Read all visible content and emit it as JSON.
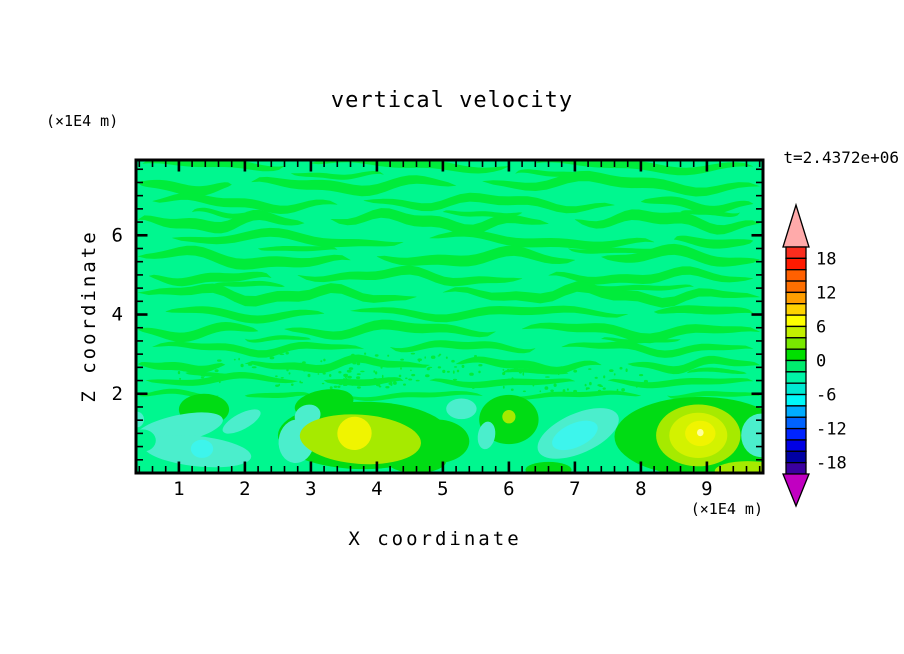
{
  "title": "vertical velocity",
  "time_label": "t=2.4372e+06",
  "axes": {
    "x_label": "X coordinate",
    "x_unit": "(×1E4 m)",
    "z_label": "Z coordinate",
    "z_unit": "(×1E4 m)",
    "x_ticks": [
      1,
      2,
      3,
      4,
      5,
      6,
      7,
      8,
      9
    ],
    "z_ticks": [
      2,
      4,
      6
    ]
  },
  "colorbar": {
    "labels": [
      "18",
      "12",
      "6",
      "0",
      "-6",
      "-12",
      "-18"
    ],
    "segments": [
      "#FA2D1E",
      "#FF1A00",
      "#FF6000",
      "#FF6F00",
      "#FF9E00",
      "#FFD300",
      "#FFFF00",
      "#C3F000",
      "#79E900",
      "#00DF00",
      "#00EC6E",
      "#00F4A6",
      "#00E9D2",
      "#00F8F8",
      "#00ACFF",
      "#0063FF",
      "#0024FF",
      "#0000E4",
      "#0000A4",
      "#3B00A0"
    ],
    "over_color": "#FFAAAA",
    "under_color": "#C100C1"
  },
  "chart_data": {
    "type": "filled_contour",
    "field": "vertical velocity",
    "time_label": "t=2.4372e+06",
    "x_range": [
      0.35,
      9.85
    ],
    "z_range": [
      0,
      7.9
    ],
    "x_axis_unit": "(×1E4 m)",
    "z_axis_unit": "(×1E4 m)",
    "contour_interval": 2,
    "level_range": [
      -20,
      20
    ],
    "levels_labeled": [
      18,
      12,
      6,
      0,
      -6,
      -12,
      -18
    ],
    "palette": {
      "bg": "#00F78F",
      "streak": "#00EC3B",
      "green": "#00DC14",
      "turquoise": "#4BEECC",
      "cyan": "#3DF5EC",
      "chartreuse": "#A6EA00",
      "yellowgreen": "#D3F200",
      "yellow": "#F0F400",
      "pale": "#FFFF9C"
    },
    "features": {
      "streak_bands_note": "alternating wavy bands of w between 0 and +2 (green) on 0 to -2 (spring green), z from 1.9 to 7.9",
      "streaks": [
        {
          "z": 7.78,
          "h": 0.2,
          "t": -0.025,
          "segs": [
            [
              0.45,
              2.6
            ],
            [
              3.0,
              6.0
            ],
            [
              6.4,
              9.7
            ]
          ]
        },
        {
          "z": 7.3,
          "h": 0.26,
          "t": -0.03,
          "segs": [
            [
              0.38,
              1.8
            ],
            [
              2.1,
              5.2
            ],
            [
              5.6,
              9.8
            ]
          ]
        },
        {
          "z": 6.82,
          "h": 0.22,
          "t": -0.03,
          "segs": [
            [
              0.6,
              3.4
            ],
            [
              3.8,
              7.6
            ],
            [
              8.0,
              9.7
            ]
          ]
        },
        {
          "z": 6.35,
          "h": 0.28,
          "t": -0.035,
          "segs": [
            [
              0.38,
              2.9
            ],
            [
              3.3,
              6.6
            ],
            [
              7.0,
              9.8
            ]
          ]
        },
        {
          "z": 5.88,
          "h": 0.22,
          "t": -0.03,
          "segs": [
            [
              0.9,
              4.4
            ],
            [
              4.8,
              8.2
            ],
            [
              8.5,
              9.7
            ]
          ]
        },
        {
          "z": 5.42,
          "h": 0.27,
          "t": -0.03,
          "segs": [
            [
              0.38,
              3.6
            ],
            [
              4.0,
              7.0
            ],
            [
              7.4,
              9.8
            ]
          ]
        },
        {
          "z": 4.95,
          "h": 0.22,
          "t": -0.025,
          "segs": [
            [
              0.55,
              2.4
            ],
            [
              2.8,
              6.2
            ],
            [
              6.6,
              9.7
            ]
          ]
        },
        {
          "z": 4.5,
          "h": 0.26,
          "t": -0.025,
          "segs": [
            [
              0.38,
              4.6
            ],
            [
              5.0,
              9.8
            ]
          ]
        },
        {
          "z": 4.05,
          "h": 0.2,
          "t": -0.02,
          "segs": [
            [
              0.8,
              3.2
            ],
            [
              3.6,
              7.8
            ],
            [
              8.2,
              9.7
            ]
          ]
        },
        {
          "z": 3.6,
          "h": 0.24,
          "t": -0.02,
          "segs": [
            [
              0.38,
              2.2
            ],
            [
              2.6,
              5.8
            ],
            [
              6.2,
              9.8
            ]
          ]
        },
        {
          "z": 3.16,
          "h": 0.18,
          "t": -0.015,
          "segs": [
            [
              0.6,
              3.8
            ],
            [
              4.2,
              6.4
            ],
            [
              6.8,
              9.7
            ]
          ]
        },
        {
          "z": 2.74,
          "h": 0.2,
          "t": -0.012,
          "segs": [
            [
              0.38,
              1.7
            ],
            [
              2.0,
              4.8
            ],
            [
              5.2,
              7.4
            ],
            [
              7.8,
              9.8
            ]
          ]
        },
        {
          "z": 2.33,
          "h": 0.16,
          "t": -0.01,
          "segs": [
            [
              0.5,
              2.8
            ],
            [
              3.2,
              4.4
            ],
            [
              4.8,
              7.0
            ],
            [
              7.5,
              9.7
            ]
          ]
        },
        {
          "z": 1.95,
          "h": 0.12,
          "t": 0,
          "segs": [
            [
              0.4,
              1.6
            ],
            [
              2.0,
              3.0
            ],
            [
              3.5,
              5.6
            ],
            [
              6.0,
              8.0
            ],
            [
              8.4,
              9.8
            ]
          ]
        },
        {
          "z": 7.55,
          "h": 0.12,
          "t": -0.02,
          "segs": [
            [
              2.7,
              4.1
            ],
            [
              6.1,
              7.3
            ]
          ]
        },
        {
          "z": 6.58,
          "h": 0.12,
          "t": -0.02,
          "segs": [
            [
              1.2,
              2.2
            ],
            [
              5.0,
              6.2
            ],
            [
              8.6,
              9.5
            ]
          ]
        },
        {
          "z": 5.65,
          "h": 0.12,
          "t": -0.02,
          "segs": [
            [
              2.2,
              3.4
            ],
            [
              6.9,
              8.3
            ]
          ]
        },
        {
          "z": 4.72,
          "h": 0.12,
          "t": -0.02,
          "segs": [
            [
              1.5,
              2.6
            ],
            [
              7.2,
              8.8
            ]
          ]
        },
        {
          "z": 3.38,
          "h": 0.1,
          "t": -0.01,
          "segs": [
            [
              2.0,
              3.0
            ],
            [
              7.4,
              8.6
            ]
          ]
        },
        {
          "z": 2.52,
          "h": 0.1,
          "t": -0.01,
          "segs": [
            [
              1.1,
              2.0
            ],
            [
              5.9,
              6.9
            ],
            [
              8.7,
              9.6
            ]
          ]
        }
      ],
      "speckle_boxes": [
        {
          "x0": 2.4,
          "x1": 5.6,
          "z0": 2.15,
          "z1": 3.05,
          "n": 110,
          "seed": 7
        },
        {
          "x0": 5.9,
          "x1": 8.2,
          "z0": 2.0,
          "z1": 2.7,
          "n": 45,
          "seed": 13
        },
        {
          "x0": 1.0,
          "x1": 2.2,
          "z0": 2.3,
          "z1": 2.9,
          "n": 18,
          "seed": 29
        }
      ],
      "blobs": [
        {
          "c": "green",
          "cx": 1.38,
          "cz": 1.6,
          "rx": 0.38,
          "rz": 0.4,
          "rot": 0
        },
        {
          "c": "green",
          "cx": 3.8,
          "cz": 0.95,
          "rx": 1.3,
          "rz": 0.85,
          "rot": 0
        },
        {
          "c": "green",
          "cx": 3.2,
          "cz": 1.75,
          "rx": 0.45,
          "rz": 0.35,
          "rot": -10
        },
        {
          "c": "green",
          "cx": 4.6,
          "cz": 0.3,
          "rx": 0.45,
          "rz": 0.3,
          "rot": 0
        },
        {
          "c": "green",
          "cx": 4.9,
          "cz": 0.8,
          "rx": 0.5,
          "rz": 0.55,
          "rot": 0
        },
        {
          "c": "green",
          "cx": 6.0,
          "cz": 1.35,
          "rx": 0.45,
          "rz": 0.62,
          "rot": 0
        },
        {
          "c": "green",
          "cx": 8.9,
          "cz": 0.92,
          "rx": 1.3,
          "rz": 1.0,
          "rot": 0
        },
        {
          "c": "green",
          "cx": 6.6,
          "cz": 0.08,
          "rx": 0.35,
          "rz": 0.2,
          "rot": 0
        },
        {
          "c": "turquoise",
          "cx": 1.0,
          "cz": 1.12,
          "rx": 0.68,
          "rz": 0.34,
          "rot": -12
        },
        {
          "c": "turquoise",
          "cx": 1.28,
          "cz": 0.55,
          "rx": 0.82,
          "rz": 0.38,
          "rot": 6
        },
        {
          "c": "turquoise",
          "cx": 1.95,
          "cz": 1.3,
          "rx": 0.32,
          "rz": 0.2,
          "rot": -28
        },
        {
          "c": "bg",
          "cx": 0.45,
          "cz": 0.82,
          "rx": 0.2,
          "rz": 0.28,
          "rot": 0
        },
        {
          "c": "cyan",
          "cx": 1.35,
          "cz": 0.61,
          "rx": 0.17,
          "rz": 0.23,
          "rot": 0
        },
        {
          "c": "turquoise",
          "cx": 2.78,
          "cz": 0.8,
          "rx": 0.27,
          "rz": 0.55,
          "rot": 6
        },
        {
          "c": "turquoise",
          "cx": 2.95,
          "cz": 1.45,
          "rx": 0.2,
          "rz": 0.27,
          "rot": -20
        },
        {
          "c": "turquoise",
          "cx": 5.28,
          "cz": 1.62,
          "rx": 0.23,
          "rz": 0.26,
          "rot": 0
        },
        {
          "c": "turquoise",
          "cx": 5.66,
          "cz": 0.95,
          "rx": 0.13,
          "rz": 0.35,
          "rot": 10
        },
        {
          "c": "turquoise",
          "cx": 7.05,
          "cz": 1.0,
          "rx": 0.66,
          "rz": 0.5,
          "rot": -24
        },
        {
          "c": "cyan",
          "cx": 7.0,
          "cz": 0.95,
          "rx": 0.37,
          "rz": 0.3,
          "rot": -24
        },
        {
          "c": "turquoise",
          "cx": 9.82,
          "cz": 0.95,
          "rx": 0.3,
          "rz": 0.55,
          "rot": 0
        },
        {
          "c": "turquoise",
          "cx": 0.36,
          "cz": 1.35,
          "rx": 0.11,
          "rz": 0.2,
          "rot": 0
        },
        {
          "c": "chartreuse",
          "cx": 3.75,
          "cz": 0.85,
          "rx": 0.92,
          "rz": 0.62,
          "rot": 4
        },
        {
          "c": "yellow",
          "cx": 3.66,
          "cz": 1.0,
          "rx": 0.26,
          "rz": 0.42,
          "rot": -10
        },
        {
          "c": "chartreuse",
          "cx": 6.0,
          "cz": 1.42,
          "rx": 0.1,
          "rz": 0.17,
          "rot": 0
        },
        {
          "c": "chartreuse",
          "cx": 8.87,
          "cz": 0.95,
          "rx": 0.64,
          "rz": 0.78,
          "rot": 0
        },
        {
          "c": "yellowgreen",
          "cx": 8.87,
          "cz": 0.95,
          "rx": 0.44,
          "rz": 0.57,
          "rot": 0
        },
        {
          "c": "yellow",
          "cx": 8.9,
          "cz": 1.0,
          "rx": 0.23,
          "rz": 0.32,
          "rot": 0
        },
        {
          "c": "pale",
          "cx": 8.9,
          "cz": 1.02,
          "rx": 0.05,
          "rz": 0.09,
          "rot": 0
        },
        {
          "c": "chartreuse",
          "cx": 9.62,
          "cz": 0.05,
          "rx": 0.5,
          "rz": 0.25,
          "rot": 0
        }
      ]
    }
  }
}
